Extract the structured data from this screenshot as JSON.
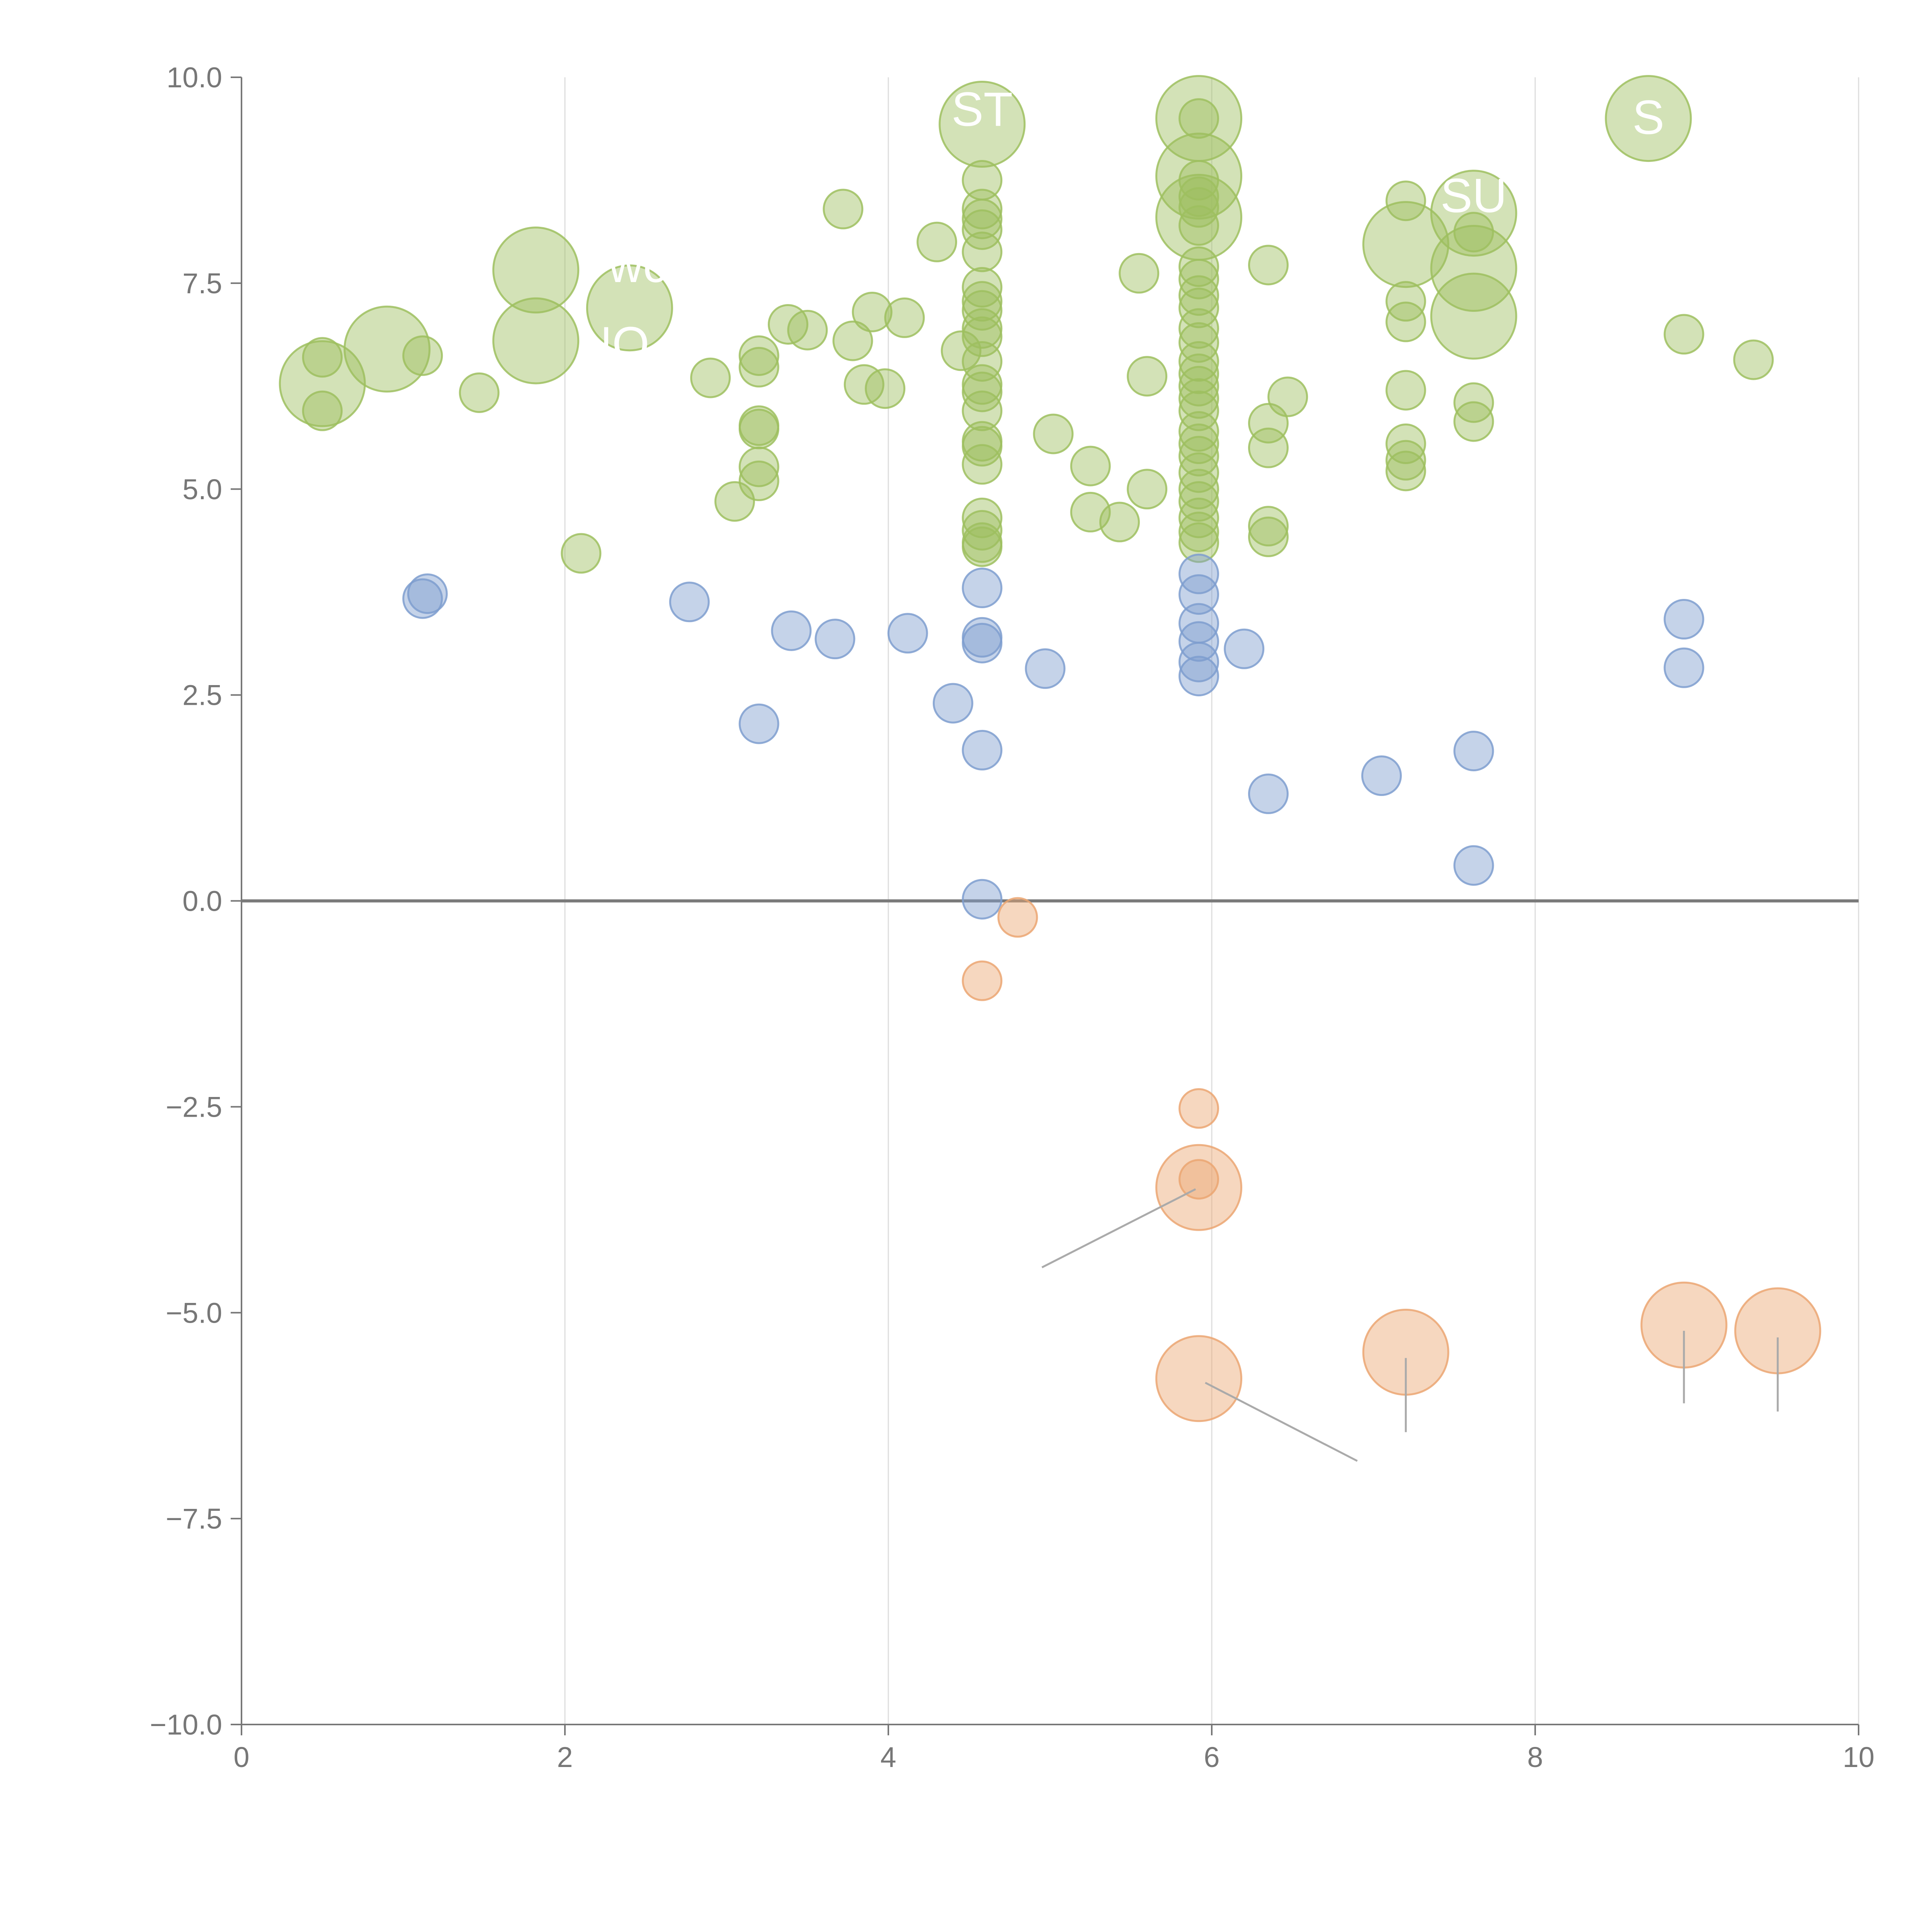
{
  "chart_data": {
    "type": "scatter",
    "title": "",
    "xlabel": "",
    "ylabel": "",
    "xlim": [
      0,
      10
    ],
    "ylim": [
      -10,
      10
    ],
    "x_ticks": [
      "0",
      "2",
      "4",
      "6",
      "8",
      "10"
    ],
    "y_ticks": [
      "10.0",
      "7.5",
      "5.0",
      "2.5",
      "0.0",
      "−2.5",
      "−5.0",
      "−7.5",
      "−10.0"
    ],
    "grid": "vertical",
    "colors": {
      "high": "#9dbf5f",
      "mid": "#7e9ecf",
      "negative": "#eba672",
      "axis": "#777777",
      "grid": "#dddddd",
      "zero_line": "#7a7a7a",
      "leader": "#aaaaaa"
    },
    "series": [
      {
        "name": "high",
        "color": "#9dbf5f",
        "points": [
          [
            0.5,
            6.6,
            1
          ],
          [
            0.5,
            5.95,
            1
          ],
          [
            0.5,
            6.28,
            2.2
          ],
          [
            0.9,
            6.7,
            2.2
          ],
          [
            1.12,
            6.62,
            1
          ],
          [
            1.47,
            6.17,
            1
          ],
          [
            1.82,
            7.66,
            2.2
          ],
          [
            1.82,
            6.8,
            2.2
          ],
          [
            2.1,
            4.22,
            1
          ],
          [
            2.4,
            7.2,
            2.2
          ],
          [
            2.9,
            6.35,
            1
          ],
          [
            3.05,
            4.85,
            1
          ],
          [
            3.2,
            6.62,
            1
          ],
          [
            3.2,
            6.48,
            1
          ],
          [
            3.2,
            5.77,
            1
          ],
          [
            3.2,
            5.73,
            1
          ],
          [
            3.2,
            5.27,
            1
          ],
          [
            3.2,
            5.1,
            1
          ],
          [
            3.38,
            7.0,
            1
          ],
          [
            3.5,
            6.93,
            1
          ],
          [
            3.72,
            8.4,
            1
          ],
          [
            3.78,
            6.8,
            1
          ],
          [
            3.85,
            6.27,
            1
          ],
          [
            3.9,
            7.15,
            1
          ],
          [
            3.98,
            6.22,
            1
          ],
          [
            4.1,
            7.08,
            1
          ],
          [
            4.3,
            8.0,
            1
          ],
          [
            4.45,
            6.68,
            1
          ],
          [
            4.58,
            9.43,
            2.2
          ],
          [
            4.58,
            8.75,
            1
          ],
          [
            4.58,
            8.4,
            1
          ],
          [
            4.58,
            8.28,
            1
          ],
          [
            4.58,
            8.15,
            1
          ],
          [
            4.58,
            7.88,
            1
          ],
          [
            4.58,
            7.45,
            1
          ],
          [
            4.58,
            7.28,
            1
          ],
          [
            4.58,
            7.17,
            1
          ],
          [
            4.58,
            6.95,
            1
          ],
          [
            4.58,
            6.85,
            1
          ],
          [
            4.58,
            6.55,
            1
          ],
          [
            4.58,
            6.27,
            1
          ],
          [
            4.58,
            6.18,
            1
          ],
          [
            4.58,
            5.95,
            1
          ],
          [
            4.58,
            5.58,
            1
          ],
          [
            4.58,
            5.52,
            1
          ],
          [
            4.58,
            5.3,
            1
          ],
          [
            4.58,
            4.65,
            1
          ],
          [
            4.58,
            4.5,
            1
          ],
          [
            4.58,
            4.35,
            1
          ],
          [
            4.58,
            4.3,
            1
          ],
          [
            5.02,
            5.67,
            1
          ],
          [
            5.25,
            5.28,
            1
          ],
          [
            5.25,
            4.72,
            1
          ],
          [
            5.43,
            4.6,
            1
          ],
          [
            5.55,
            7.62,
            1
          ],
          [
            5.6,
            5.0,
            1
          ],
          [
            5.6,
            6.37,
            1
          ],
          [
            5.92,
            9.5,
            2.2
          ],
          [
            5.92,
            8.8,
            2.2
          ],
          [
            5.92,
            8.3,
            2.2
          ],
          [
            5.92,
            9.5,
            1
          ],
          [
            5.92,
            8.75,
            1
          ],
          [
            5.92,
            8.55,
            1
          ],
          [
            5.92,
            8.42,
            1
          ],
          [
            5.92,
            8.2,
            1
          ],
          [
            5.92,
            7.7,
            1
          ],
          [
            5.92,
            7.55,
            1
          ],
          [
            5.92,
            7.35,
            1
          ],
          [
            5.92,
            7.2,
            1
          ],
          [
            5.92,
            6.95,
            1
          ],
          [
            5.92,
            6.78,
            1
          ],
          [
            5.92,
            6.55,
            1
          ],
          [
            5.92,
            6.4,
            1
          ],
          [
            5.92,
            6.25,
            1
          ],
          [
            5.92,
            6.1,
            1
          ],
          [
            5.92,
            5.95,
            1
          ],
          [
            5.92,
            5.7,
            1
          ],
          [
            5.92,
            5.55,
            1
          ],
          [
            5.92,
            5.4,
            1
          ],
          [
            5.92,
            5.2,
            1
          ],
          [
            5.92,
            5.0,
            1
          ],
          [
            5.92,
            4.85,
            1
          ],
          [
            5.92,
            4.65,
            1
          ],
          [
            5.92,
            4.48,
            1
          ],
          [
            5.92,
            4.35,
            1
          ],
          [
            6.35,
            7.72,
            1
          ],
          [
            6.35,
            5.8,
            1
          ],
          [
            6.35,
            5.5,
            1
          ],
          [
            6.35,
            4.55,
            1
          ],
          [
            6.35,
            4.42,
            1
          ],
          [
            6.47,
            6.12,
            1
          ],
          [
            7.2,
            8.5,
            1
          ],
          [
            7.2,
            7.97,
            2.2
          ],
          [
            7.2,
            7.28,
            1
          ],
          [
            7.2,
            7.03,
            1
          ],
          [
            7.2,
            6.2,
            1
          ],
          [
            7.2,
            5.55,
            1
          ],
          [
            7.2,
            5.35,
            1
          ],
          [
            7.2,
            5.22,
            1
          ],
          [
            7.62,
            8.35,
            2.2
          ],
          [
            7.62,
            7.68,
            2.2
          ],
          [
            7.62,
            7.1,
            2.2
          ],
          [
            7.62,
            8.12,
            1
          ],
          [
            7.62,
            6.05,
            1
          ],
          [
            7.62,
            5.82,
            1
          ],
          [
            8.7,
            9.5,
            2.2
          ],
          [
            8.92,
            6.88,
            1
          ],
          [
            9.35,
            6.57,
            1
          ]
        ]
      },
      {
        "name": "mid",
        "color": "#7e9ecf",
        "points": [
          [
            1.12,
            3.67,
            1
          ],
          [
            1.15,
            3.73,
            1
          ],
          [
            2.77,
            3.63,
            1
          ],
          [
            3.2,
            2.15,
            1
          ],
          [
            3.4,
            3.28,
            1
          ],
          [
            3.67,
            3.18,
            1
          ],
          [
            4.12,
            3.25,
            1
          ],
          [
            4.4,
            2.4,
            1
          ],
          [
            4.58,
            3.8,
            1
          ],
          [
            4.58,
            3.2,
            1
          ],
          [
            4.58,
            3.13,
            1
          ],
          [
            4.58,
            1.83,
            1
          ],
          [
            4.58,
            0.02,
            1
          ],
          [
            4.97,
            2.82,
            1
          ],
          [
            5.92,
            3.97,
            1
          ],
          [
            5.92,
            3.72,
            1
          ],
          [
            5.92,
            3.37,
            1
          ],
          [
            5.92,
            3.15,
            1
          ],
          [
            5.92,
            2.9,
            1
          ],
          [
            5.92,
            2.73,
            1
          ],
          [
            6.2,
            3.06,
            1
          ],
          [
            6.35,
            1.3,
            1
          ],
          [
            7.05,
            1.52,
            1
          ],
          [
            7.62,
            1.82,
            1
          ],
          [
            7.62,
            0.43,
            1
          ],
          [
            8.92,
            3.42,
            1
          ],
          [
            8.92,
            2.83,
            1
          ]
        ]
      },
      {
        "name": "negative",
        "color": "#eba672",
        "points": [
          [
            4.8,
            -0.2,
            1
          ],
          [
            4.58,
            -0.97,
            1
          ],
          [
            5.92,
            -2.52,
            1
          ],
          [
            5.92,
            -3.38,
            1
          ],
          [
            5.92,
            -3.48,
            2.2
          ],
          [
            5.92,
            -5.8,
            2.2
          ],
          [
            7.2,
            -5.48,
            2.2
          ],
          [
            8.92,
            -5.15,
            2.2
          ],
          [
            9.5,
            -5.22,
            2.2
          ]
        ]
      }
    ],
    "annotations": [
      {
        "label": "ST",
        "x": 4.58,
        "y": 9.6
      },
      {
        "label": "SU",
        "x": 7.62,
        "y": 8.55
      },
      {
        "label": "S",
        "x": 8.7,
        "y": 9.5
      },
      {
        "label": "wc",
        "x": 2.45,
        "y": 7.7
      },
      {
        "label": "NO",
        "x": 2.3,
        "y": 6.75
      }
    ],
    "leader_lines": [
      [
        [
          5.9,
          -3.5
        ],
        [
          4.95,
          -4.45
        ]
      ],
      [
        [
          5.96,
          -5.85
        ],
        [
          6.9,
          -6.8
        ]
      ],
      [
        [
          7.2,
          -5.55
        ],
        [
          7.2,
          -6.45
        ]
      ],
      [
        [
          8.92,
          -5.22
        ],
        [
          8.92,
          -6.1
        ]
      ],
      [
        [
          9.5,
          -5.3
        ],
        [
          9.5,
          -6.2
        ]
      ]
    ]
  }
}
